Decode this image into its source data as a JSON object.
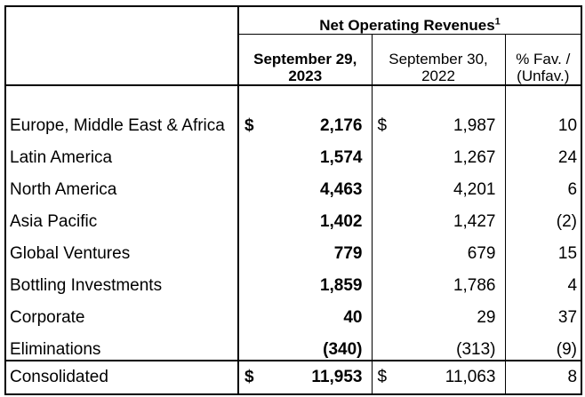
{
  "header": {
    "group_title": "Net Operating Revenues",
    "group_footnote": "1",
    "col1_title": "September 29, 2023",
    "col2_title": "September 30, 2022",
    "col3_title": "% Fav. / (Unfav.)"
  },
  "rows": [
    {
      "label": "Europe, Middle East & Africa",
      "cur1": "$",
      "v2023": "2,176",
      "cur2": "$",
      "v2022": "1,987",
      "pct": "10"
    },
    {
      "label": "Latin America",
      "cur1": "",
      "v2023": "1,574",
      "cur2": "",
      "v2022": "1,267",
      "pct": "24"
    },
    {
      "label": "North America",
      "cur1": "",
      "v2023": "4,463",
      "cur2": "",
      "v2022": "4,201",
      "pct": "6"
    },
    {
      "label": "Asia Pacific",
      "cur1": "",
      "v2023": "1,402",
      "cur2": "",
      "v2022": "1,427",
      "pct": "(2)"
    },
    {
      "label": "Global Ventures",
      "cur1": "",
      "v2023": "779",
      "cur2": "",
      "v2022": "679",
      "pct": "15"
    },
    {
      "label": "Bottling Investments",
      "cur1": "",
      "v2023": "1,859",
      "cur2": "",
      "v2022": "1,786",
      "pct": "4"
    },
    {
      "label": "Corporate",
      "cur1": "",
      "v2023": "40",
      "cur2": "",
      "v2022": "29",
      "pct": "37"
    },
    {
      "label": "Eliminations",
      "cur1": "",
      "v2023": "(340)",
      "cur2": "",
      "v2022": "(313)",
      "pct": "(9)"
    }
  ],
  "total": {
    "label": "Consolidated",
    "cur1": "$",
    "v2023": "11,953",
    "cur2": "$",
    "v2022": "11,063",
    "pct": "8"
  }
}
